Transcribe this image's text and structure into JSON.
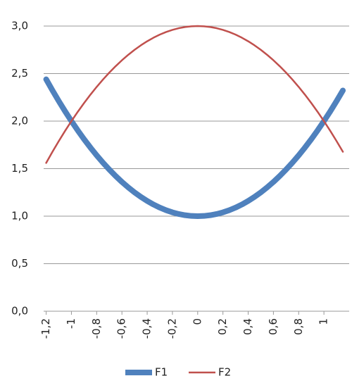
{
  "chart_data": {
    "type": "line",
    "x": [
      -1.2,
      -1.15,
      -1.1,
      -1.05,
      -1,
      -0.95,
      -0.9,
      -0.85,
      -0.8,
      -0.75,
      -0.7,
      -0.65,
      -0.6,
      -0.55,
      -0.5,
      -0.45,
      -0.4,
      -0.35,
      -0.3,
      -0.25,
      -0.2,
      -0.15,
      -0.1,
      -0.05,
      0,
      0.05,
      0.1,
      0.15,
      0.2,
      0.25,
      0.3,
      0.35,
      0.4,
      0.45,
      0.5,
      0.55,
      0.6,
      0.65,
      0.7,
      0.75,
      0.8,
      0.85,
      0.9,
      0.95,
      1,
      1.05,
      1.1,
      1.15
    ],
    "series": [
      {
        "name": "F1",
        "color": "#4f81bd",
        "width": 8,
        "values": [
          2.44,
          2.3225,
          2.21,
          2.1025,
          2,
          1.9025,
          1.81,
          1.7225,
          1.64,
          1.5625,
          1.49,
          1.4225,
          1.36,
          1.3025,
          1.25,
          1.2025,
          1.16,
          1.1225,
          1.09,
          1.0625,
          1.04,
          1.0225,
          1.01,
          1.0025,
          1,
          1.0025,
          1.01,
          1.0225,
          1.04,
          1.0625,
          1.09,
          1.1225,
          1.16,
          1.2025,
          1.25,
          1.3025,
          1.36,
          1.4225,
          1.49,
          1.5625,
          1.64,
          1.7225,
          1.81,
          1.9025,
          2,
          2.1025,
          2.21,
          2.3225
        ]
      },
      {
        "name": "F2",
        "color": "#c0504d",
        "width": 2.5,
        "values": [
          1.56,
          1.6775,
          1.79,
          1.8975,
          2,
          2.0975,
          2.19,
          2.2775,
          2.36,
          2.4375,
          2.51,
          2.5775,
          2.64,
          2.6975,
          2.75,
          2.7975,
          2.84,
          2.8775,
          2.91,
          2.9375,
          2.96,
          2.9775,
          2.99,
          2.9975,
          3,
          2.9975,
          2.99,
          2.9775,
          2.96,
          2.9375,
          2.91,
          2.8775,
          2.84,
          2.7975,
          2.75,
          2.6975,
          2.64,
          2.5775,
          2.51,
          2.4375,
          2.36,
          2.2775,
          2.19,
          2.0975,
          2,
          1.8975,
          1.79,
          1.6775
        ]
      }
    ],
    "xlim": [
      -1.22,
      1.2
    ],
    "xticks": [
      {
        "value": -1.2,
        "label": "-1,2"
      },
      -1,
      {
        "value": -0.8,
        "label": "-0,8"
      },
      {
        "value": -0.6,
        "label": "-0,6"
      },
      {
        "value": -0.4,
        "label": "-0,4"
      },
      {
        "value": -0.2,
        "label": "-0,2"
      },
      0,
      {
        "value": 0.2,
        "label": "0,2"
      },
      {
        "value": 0.4,
        "label": "0,4"
      },
      {
        "value": 0.6,
        "label": "0,6"
      },
      {
        "value": 0.8,
        "label": "0,8"
      },
      1
    ],
    "ylim": [
      0,
      3
    ],
    "yticks": [
      {
        "value": 0,
        "label": "0,0"
      },
      {
        "value": 0.5,
        "label": "0,5"
      },
      {
        "value": 1,
        "label": "1,0"
      },
      {
        "value": 1.5,
        "label": "1,5"
      },
      {
        "value": 2,
        "label": "2,0"
      },
      {
        "value": 2.5,
        "label": "2,5"
      },
      {
        "value": 3,
        "label": "3,0"
      }
    ],
    "grid": true,
    "legend": "bottom"
  }
}
